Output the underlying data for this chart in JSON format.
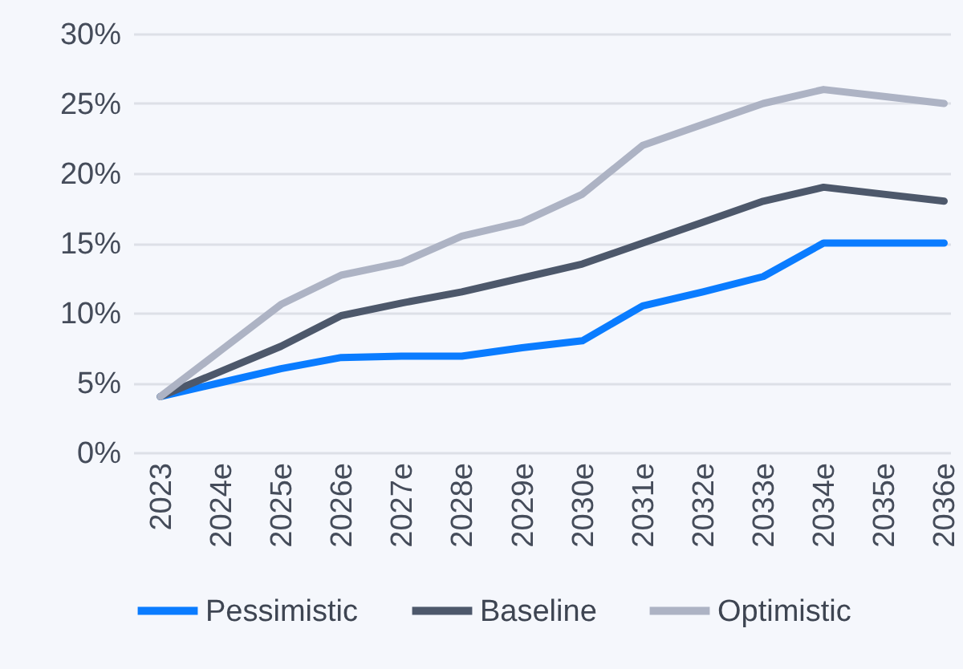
{
  "chart_data": {
    "type": "line",
    "categories": [
      "2023",
      "2024e",
      "2025e",
      "2026e",
      "2027e",
      "2028e",
      "2029e",
      "2030e",
      "2031e",
      "2032e",
      "2033e",
      "2034e",
      "2035e",
      "2036e"
    ],
    "series": [
      {
        "name": "Pessimistic",
        "color": "#0a7cff",
        "values": [
          4.0,
          5.0,
          6.0,
          6.8,
          6.9,
          6.9,
          7.5,
          8.0,
          10.5,
          11.5,
          12.6,
          15.0,
          15.0,
          15.0
        ]
      },
      {
        "name": "Baseline",
        "color": "#4d586b",
        "values": [
          4.0,
          5.8,
          7.6,
          9.8,
          10.7,
          11.5,
          12.5,
          13.5,
          15.0,
          16.5,
          18.0,
          19.0,
          18.5,
          18.0
        ]
      },
      {
        "name": "Optimistic",
        "color": "#adb3c4",
        "values": [
          4.0,
          7.3,
          10.6,
          12.7,
          13.6,
          15.5,
          16.5,
          18.5,
          22.0,
          23.5,
          25.0,
          26.0,
          25.5,
          25.0
        ]
      }
    ],
    "ylim": [
      0,
      30
    ],
    "yticks": [
      {
        "value": 0,
        "label": "0%"
      },
      {
        "value": 5,
        "label": "5%"
      },
      {
        "value": 10,
        "label": "10%"
      },
      {
        "value": 15,
        "label": "15%"
      },
      {
        "value": 20,
        "label": "20%"
      },
      {
        "value": 25,
        "label": "25%"
      },
      {
        "value": 30,
        "label": "30%"
      }
    ],
    "grid": "y",
    "legend": "bottom",
    "marker": "none",
    "line_style": "solid"
  }
}
